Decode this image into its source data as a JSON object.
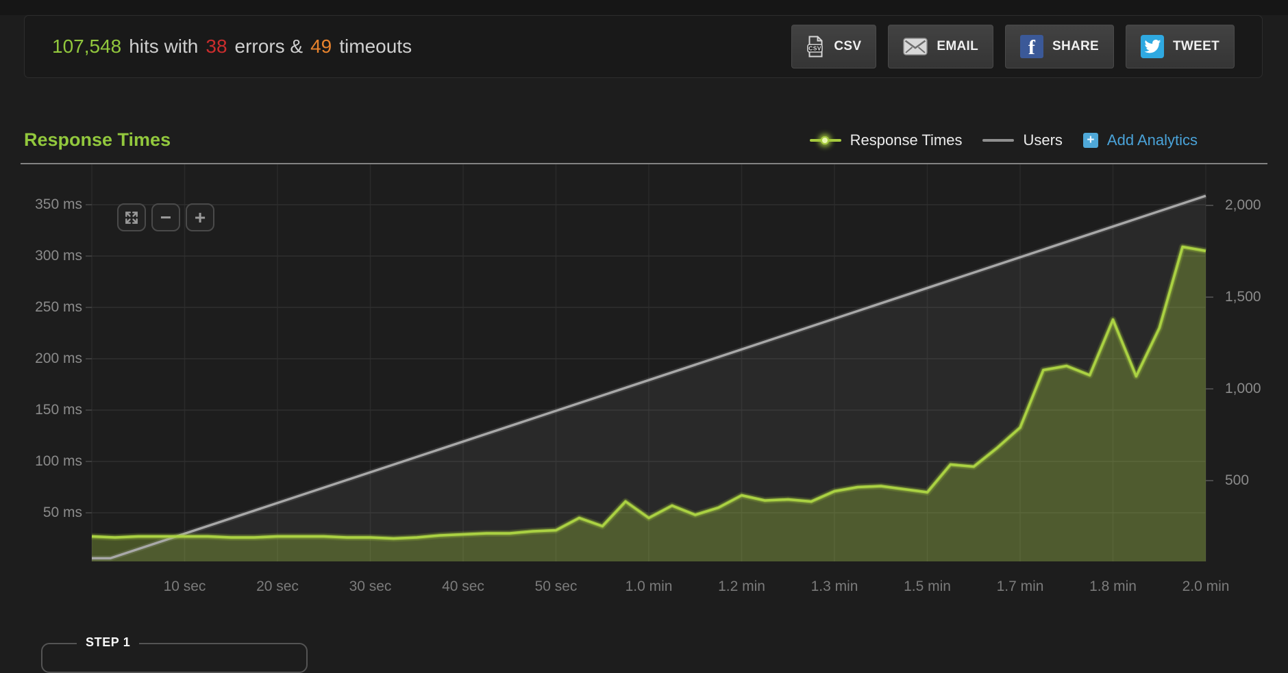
{
  "stats": {
    "hits": "107,548",
    "hits_text": "hits with",
    "errors": "38",
    "errors_text": "errors &",
    "timeouts": "49",
    "timeouts_text": "timeouts"
  },
  "toolbar": {
    "csv_label": "CSV",
    "email_label": "EMAIL",
    "share_label": "SHARE",
    "tweet_label": "TWEET"
  },
  "section": {
    "title": "Response Times"
  },
  "legend": {
    "response_times_label": "Response Times",
    "users_label": "Users",
    "add_analytics_label": "Add Analytics",
    "plus_glyph": "+"
  },
  "zoom_controls": {
    "minus_glyph": "−",
    "plus_glyph": "+"
  },
  "step_panel": {
    "label": "STEP 1"
  },
  "colors": {
    "accent_green": "#92c83d",
    "chart_green": "#a8cf3f",
    "error_red": "#cb2d2d",
    "timeout_orange": "#e8832d",
    "link_blue": "#4aa3d9",
    "facebook_blue": "#3b5998",
    "twitter_blue": "#2fa9e1",
    "users_gray": "#a8a8a8"
  },
  "chart_data": {
    "type": "area",
    "title": "Response Times",
    "grid": true,
    "legend_position": "top-right",
    "x_axis": {
      "unit": "time",
      "range_seconds": [
        0,
        120
      ],
      "tick_interval_seconds": 10,
      "ticks": [
        {
          "t": 10,
          "label": "10 sec"
        },
        {
          "t": 20,
          "label": "20 sec"
        },
        {
          "t": 30,
          "label": "30 sec"
        },
        {
          "t": 40,
          "label": "40 sec"
        },
        {
          "t": 50,
          "label": "50 sec"
        },
        {
          "t": 60,
          "label": "1.0 min"
        },
        {
          "t": 70,
          "label": "1.2 min"
        },
        {
          "t": 80,
          "label": "1.3 min"
        },
        {
          "t": 90,
          "label": "1.5 min"
        },
        {
          "t": 100,
          "label": "1.7 min"
        },
        {
          "t": 110,
          "label": "1.8 min"
        },
        {
          "t": 120,
          "label": "2.0 min"
        }
      ]
    },
    "y_axis_left": {
      "unit": "ms",
      "ticks": [
        {
          "v": 350,
          "label": "350 ms"
        },
        {
          "v": 300,
          "label": "300 ms"
        },
        {
          "v": 250,
          "label": "250 ms"
        },
        {
          "v": 200,
          "label": "200 ms"
        },
        {
          "v": 150,
          "label": "150 ms"
        },
        {
          "v": 100,
          "label": "100 ms"
        },
        {
          "v": 50,
          "label": "50 ms"
        }
      ]
    },
    "y_axis_right": {
      "unit": "users",
      "ticks": [
        {
          "v": 2000,
          "label": "2,000"
        },
        {
          "v": 1500,
          "label": "1,500"
        },
        {
          "v": 1000,
          "label": "1,000"
        },
        {
          "v": 500,
          "label": "500"
        }
      ]
    },
    "series": [
      {
        "name": "Response Times",
        "type": "area",
        "color": "#a8cf3f",
        "points_t_ms": [
          [
            0,
            27
          ],
          [
            2.5,
            26
          ],
          [
            5,
            27
          ],
          [
            7.5,
            27
          ],
          [
            10,
            27
          ],
          [
            12.5,
            27
          ],
          [
            15,
            26
          ],
          [
            17.5,
            26
          ],
          [
            20,
            27
          ],
          [
            22.5,
            27
          ],
          [
            25,
            27
          ],
          [
            27.5,
            26
          ],
          [
            30,
            26
          ],
          [
            32.5,
            25
          ],
          [
            35,
            26
          ],
          [
            37.5,
            28
          ],
          [
            40,
            29
          ],
          [
            42.5,
            30
          ],
          [
            45,
            30
          ],
          [
            47.5,
            32
          ],
          [
            50,
            33
          ],
          [
            52.5,
            45
          ],
          [
            55,
            37
          ],
          [
            57.5,
            61
          ],
          [
            60,
            45
          ],
          [
            62.5,
            57
          ],
          [
            65,
            48
          ],
          [
            67.5,
            55
          ],
          [
            70,
            67
          ],
          [
            72.5,
            62
          ],
          [
            75,
            63
          ],
          [
            77.5,
            61
          ],
          [
            80,
            71
          ],
          [
            82.5,
            75
          ],
          [
            85,
            76
          ],
          [
            87.5,
            73
          ],
          [
            90,
            70
          ],
          [
            92.5,
            97
          ],
          [
            95,
            95
          ],
          [
            97.5,
            113
          ],
          [
            100,
            133
          ],
          [
            102.5,
            189
          ],
          [
            105,
            193
          ],
          [
            107.5,
            184
          ],
          [
            110,
            238
          ],
          [
            112.5,
            183
          ],
          [
            115,
            230
          ],
          [
            117.5,
            309
          ],
          [
            120,
            305
          ]
        ]
      },
      {
        "name": "Users",
        "type": "line",
        "color": "#a8a8a8",
        "points_t_users": [
          [
            0,
            50
          ],
          [
            2,
            50
          ],
          [
            120,
            2000
          ]
        ]
      }
    ]
  }
}
